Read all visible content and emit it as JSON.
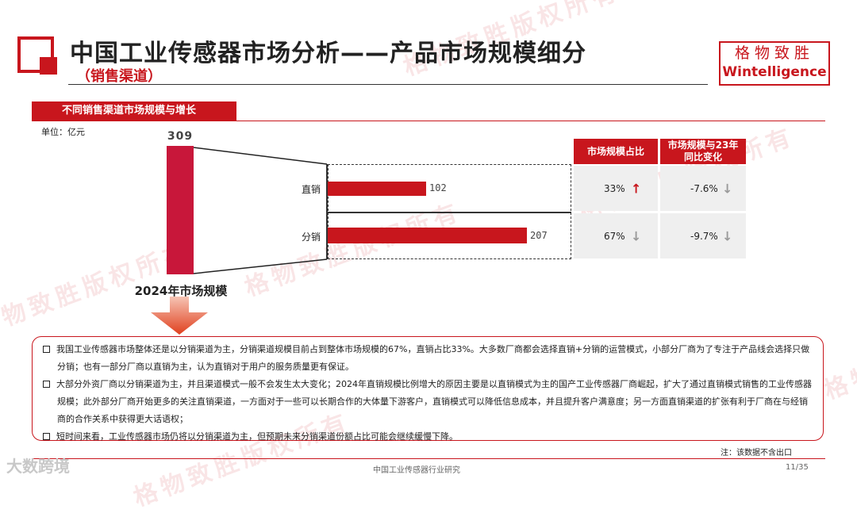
{
  "header": {
    "title": "中国工业传感器市场分析——产品市场规模细分",
    "subtitle": "（销售渠道）",
    "logo_cn": "格物致胜",
    "logo_en": "Wintelligence"
  },
  "watermark": "格物致胜版权所有",
  "section": {
    "title": "不同销售渠道市场规模与增长",
    "unit": "单位：亿元"
  },
  "chart_data": {
    "type": "bar",
    "total": {
      "label": "2024年市场规模",
      "value": 309
    },
    "categories": [
      "直销",
      "分销"
    ],
    "values": [
      102,
      207
    ],
    "orientation": "horizontal",
    "table": {
      "headers": [
        "市场规模占比",
        "市场规模与23年同比变化"
      ],
      "rows": [
        {
          "share": "33%",
          "share_trend": "up",
          "yoy": "-7.6%",
          "yoy_trend": "down"
        },
        {
          "share": "67%",
          "share_trend": "down",
          "yoy": "-9.7%",
          "yoy_trend": "down"
        }
      ]
    },
    "colors": {
      "bar": "#c8161d",
      "total_bar": "#c8173a",
      "arrow_up": "#c8161d",
      "arrow_down": "#9a9a9a"
    }
  },
  "notes": [
    "我国工业传感器市场整体还是以分销渠道为主，分销渠道规模目前占到整体市场规模的67%，直销占比33%。大多数厂商都会选择直销+分销的运营模式，小部分厂商为了专注于产品线会选择只做分销；也有一部分厂商以直销为主，认为直销对于用户的服务质量更有保证。",
    "大部分外资厂商以分销渠道为主，并且渠道模式一般不会发生太大变化；2024年直销规模比例增大的原因主要是以直销模式为主的国产工业传感器厂商崛起，扩大了通过直销模式销售的工业传感器规模；此外部分厂商开始更多的关注直销渠道，一方面对于一些可以长期合作的大体量下游客户，直销模式可以降低信息成本，并且提升客户满意度；另一方面直销渠道的扩张有利于厂商在与经销商的合作关系中获得更大话语权；",
    "短时间来看，工业传感器市场仍将以分销渠道为主，但预期未来分销渠道份额占比可能会继续缓慢下降。"
  ],
  "footnote": "注：该数据不含出口",
  "footer": {
    "title": "中国工业传感器行业研究",
    "page": "11/35",
    "brand": "大数跨境"
  }
}
